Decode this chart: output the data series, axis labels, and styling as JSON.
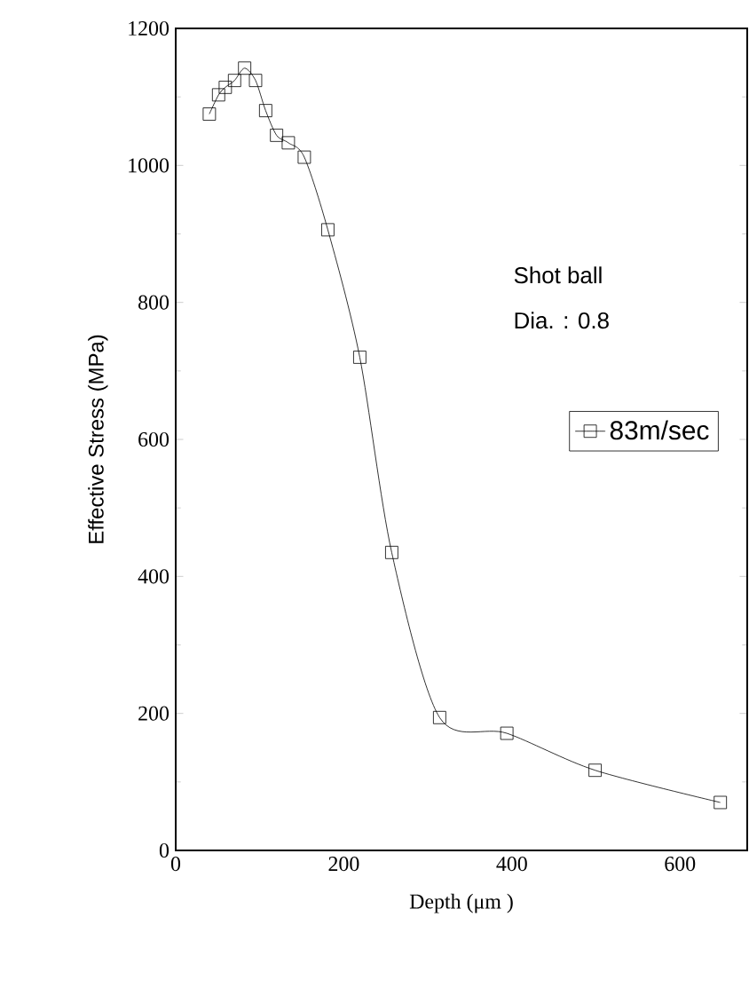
{
  "chart_data": {
    "type": "line",
    "xlabel": "Depth (μm )",
    "ylabel": "Effective Stress (MPa)",
    "annotations": [
      "Shot ball",
      "Dia. : 0.8"
    ],
    "x": [
      40,
      51,
      59,
      70,
      82,
      95,
      107,
      120,
      134,
      153,
      181,
      219,
      257,
      314,
      394,
      499,
      648
    ],
    "series": [
      {
        "name": "83m/sec",
        "color": "#000000",
        "values": [
          1075,
          1103,
          1114,
          1124,
          1142,
          1124,
          1080,
          1044,
          1033,
          1012,
          906,
          720,
          435,
          194,
          171,
          117,
          70
        ]
      }
    ],
    "xlim": [
      0,
      680
    ],
    "ylim": [
      0,
      1200
    ],
    "xticks": [
      0,
      200,
      400,
      600
    ],
    "yticks": [
      0,
      200,
      400,
      600,
      800,
      1000,
      1200
    ],
    "marker": "square",
    "line_style": "solid",
    "legend": "right",
    "grid": false
  }
}
